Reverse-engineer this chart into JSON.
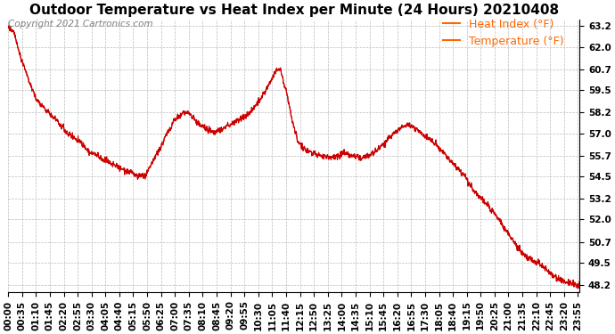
{
  "title": "Outdoor Temperature vs Heat Index per Minute (24 Hours) 20210408",
  "copyright": "Copyright 2021 Cartronics.com",
  "legend_heat": "Heat Index (°F)",
  "legend_temp": "Temperature (°F)",
  "y_ticks": [
    48.2,
    49.5,
    50.7,
    52.0,
    53.2,
    54.5,
    55.7,
    57.0,
    58.2,
    59.5,
    60.7,
    62.0,
    63.2
  ],
  "ylim": [
    47.8,
    63.6
  ],
  "line_color": "#cc0000",
  "grid_color": "#bbbbbb",
  "background_color": "#ffffff",
  "title_fontsize": 11,
  "legend_fontsize": 9,
  "copyright_fontsize": 7.5,
  "tick_fontsize": 7.5,
  "minutes_per_day": 1440,
  "x_tick_interval": 35
}
